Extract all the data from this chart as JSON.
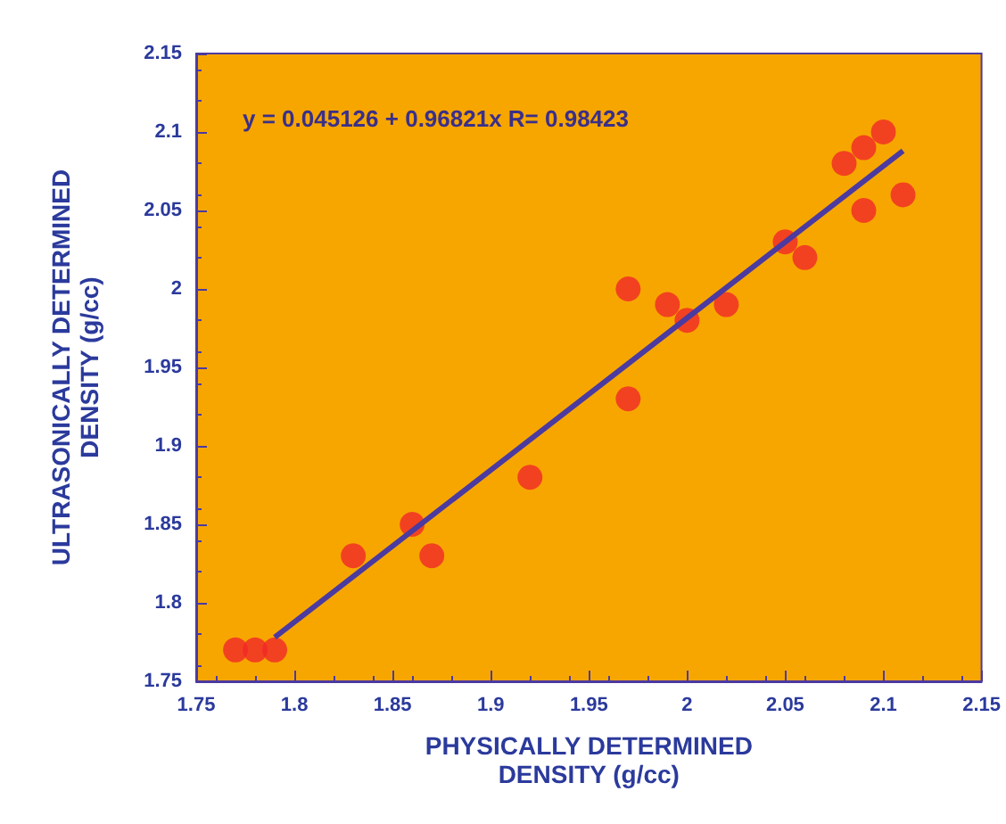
{
  "chart_data": {
    "type": "scatter",
    "xlabel": "PHYSICALLY DETERMINED\nDENSITY (g/cc)",
    "ylabel": "ULTRASONICALLY DETERMINED\nDENSITY (g/cc)",
    "annotations": [
      "y = 0.045126 + 0.96821x R= 0.98423"
    ],
    "x": [
      1.77,
      1.78,
      1.79,
      1.83,
      1.86,
      1.87,
      1.92,
      1.97,
      1.97,
      1.99,
      2.0,
      2.02,
      2.05,
      2.06,
      2.08,
      2.09,
      2.09,
      2.1,
      2.11
    ],
    "series": [
      {
        "color": "#f02828",
        "values": [
          1.77,
          1.77,
          1.77,
          1.83,
          1.85,
          1.83,
          1.88,
          2.0,
          1.93,
          1.99,
          1.98,
          1.99,
          2.03,
          2.02,
          2.08,
          2.09,
          2.05,
          2.1,
          2.06
        ]
      },
      {
        "type": "line",
        "color": "#4b3aa0",
        "x": [
          1.79,
          2.11
        ],
        "values": [
          1.778,
          2.088
        ],
        "marker": "none"
      }
    ],
    "xlim": [
      1.75,
      2.15
    ],
    "xticks": [
      1.75,
      1.8,
      1.85,
      1.9,
      1.95,
      2,
      2.05,
      2.1,
      2.15
    ],
    "ylim": [
      1.75,
      2.15
    ],
    "yticks": [
      1.75,
      1.8,
      1.85,
      1.9,
      1.95,
      2,
      2.05,
      2.1,
      2.15
    ],
    "grid": false,
    "marker": "circle"
  }
}
